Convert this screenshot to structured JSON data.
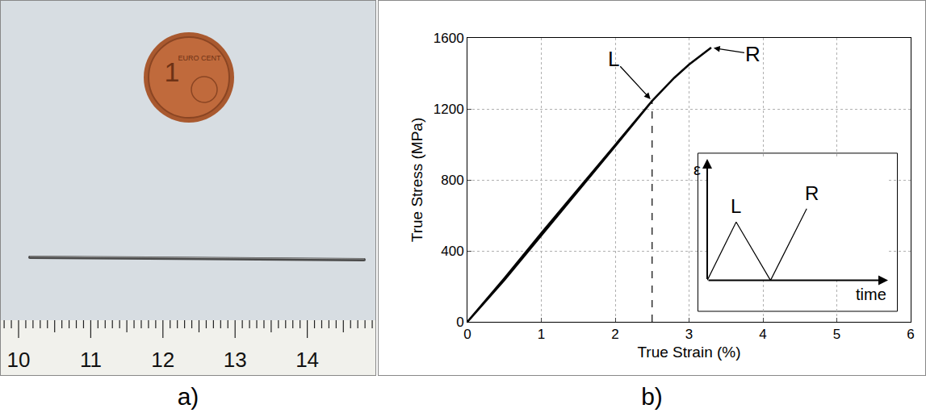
{
  "panel_labels": [
    "a)",
    "b)"
  ],
  "photo": {
    "coin_text": [
      "1",
      "EURO CENT"
    ],
    "ruler_labels": [
      "10",
      "11",
      "12",
      "13",
      "14"
    ]
  },
  "chart_data": [
    {
      "type": "line",
      "x_label": "True Strain (%)",
      "y_label": "True Stress (MPa)",
      "xlim": [
        0,
        6
      ],
      "xticks": [
        0,
        1,
        2,
        3,
        4,
        5,
        6
      ],
      "ylim": [
        0,
        1600
      ],
      "yticks": [
        0,
        400,
        800,
        1200,
        1600
      ],
      "grid": true,
      "series": [
        {
          "color": "#000000",
          "line_style": "solid",
          "x": [
            0,
            0.5,
            1.0,
            1.5,
            2.0,
            2.5,
            2.0,
            1.5,
            1.0,
            0.5,
            0,
            0.5,
            1.0,
            1.5,
            2.0,
            2.5,
            2.8,
            3.0,
            3.3
          ],
          "values": [
            0,
            240,
            500,
            750,
            1000,
            1245,
            990,
            740,
            490,
            235,
            0,
            245,
            500,
            750,
            1000,
            1245,
            1375,
            1450,
            1545
          ]
        },
        {
          "color": "#000000",
          "line_style": "dashed",
          "x": [
            2.5,
            2.5
          ],
          "values": [
            0,
            1245
          ]
        }
      ],
      "annotations": [
        {
          "text": "L",
          "x": 2.5,
          "y": 1245
        },
        {
          "text": "R",
          "x": 3.3,
          "y": 1545
        }
      ]
    },
    {
      "type": "line",
      "x_label": "time",
      "y_label": "ε",
      "xlim": [
        0,
        10
      ],
      "ylim": [
        0,
        10
      ],
      "tick_labels": false,
      "grid": false,
      "series": [
        {
          "color": "#000000",
          "line_style": "solid",
          "x": [
            0,
            1.6,
            3.5,
            5.5
          ],
          "values": [
            0,
            4.8,
            0,
            5.9
          ]
        }
      ],
      "annotations": [
        {
          "text": "L",
          "x": 1.6,
          "y": 4.8
        },
        {
          "text": "R",
          "x": 5.5,
          "y": 5.9
        }
      ]
    }
  ]
}
